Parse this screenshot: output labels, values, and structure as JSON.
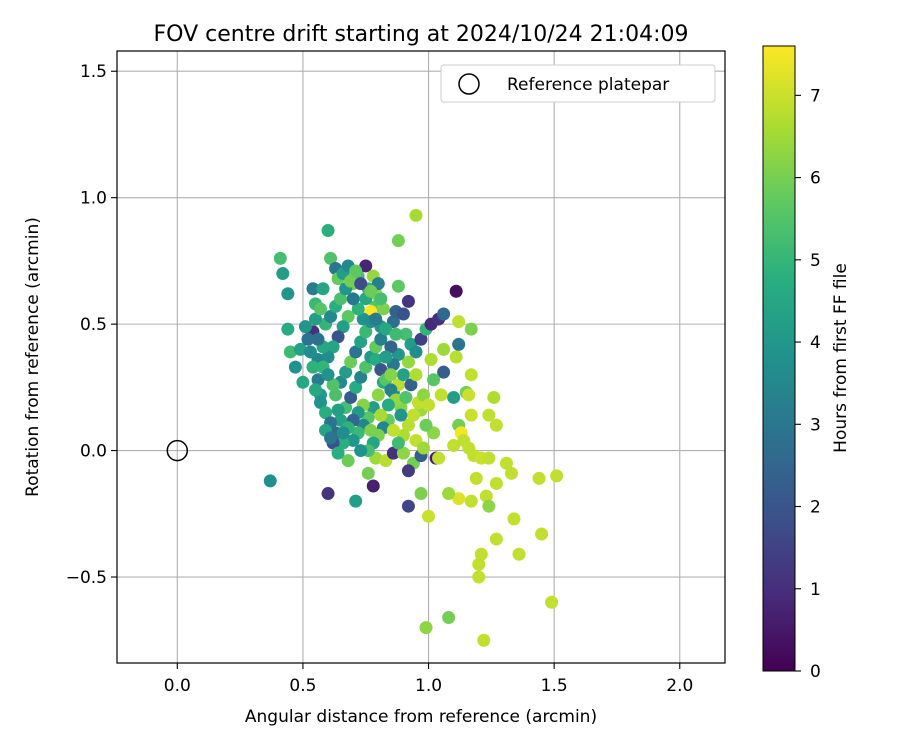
{
  "chart_data": {
    "type": "scatter",
    "title": "FOV centre drift starting at 2024/10/24 21:04:09",
    "xlabel": "Angular distance from reference (arcmin)",
    "ylabel": "Rotation from reference (arcmin)",
    "xlim": [
      -0.24,
      2.18
    ],
    "ylim": [
      -0.84,
      1.58
    ],
    "xticks": [
      0.0,
      0.5,
      1.0,
      1.5,
      2.0
    ],
    "xtick_labels": [
      "0.0",
      "0.5",
      "1.0",
      "1.5",
      "2.0"
    ],
    "yticks": [
      -0.5,
      0.0,
      0.5,
      1.0,
      1.5
    ],
    "ytick_labels": [
      "−0.5",
      "0.0",
      "0.5",
      "1.0",
      "1.5"
    ],
    "grid": true,
    "legend": {
      "position": "top-right",
      "entries": [
        "Reference platepar"
      ]
    },
    "colormap": "viridis",
    "colorbar": {
      "label": "Hours from first FF file",
      "range": [
        0,
        7.6
      ],
      "ticks": [
        0,
        1,
        2,
        3,
        4,
        5,
        6,
        7
      ],
      "tick_labels": [
        "0",
        "1",
        "2",
        "3",
        "4",
        "5",
        "6",
        "7"
      ]
    },
    "reference_point": {
      "name": "Reference platepar",
      "x": 0.0,
      "y": 0.0
    },
    "points": [
      {
        "x": 0.6,
        "y": 0.87,
        "h": 4.8
      },
      {
        "x": 0.41,
        "y": 0.76,
        "h": 5.3
      },
      {
        "x": 0.42,
        "y": 0.7,
        "h": 4.2
      },
      {
        "x": 0.44,
        "y": 0.62,
        "h": 4.0
      },
      {
        "x": 0.44,
        "y": 0.48,
        "h": 4.7
      },
      {
        "x": 0.45,
        "y": 0.39,
        "h": 5.2
      },
      {
        "x": 0.47,
        "y": 0.33,
        "h": 3.9
      },
      {
        "x": 0.49,
        "y": 0.4,
        "h": 4.4
      },
      {
        "x": 0.5,
        "y": 0.27,
        "h": 4.6
      },
      {
        "x": 0.37,
        "y": -0.12,
        "h": 3.8
      },
      {
        "x": 0.54,
        "y": 0.64,
        "h": 3.2
      },
      {
        "x": 0.55,
        "y": 0.58,
        "h": 5.1
      },
      {
        "x": 0.54,
        "y": 0.47,
        "h": 1.1
      },
      {
        "x": 0.56,
        "y": 0.36,
        "h": 3.5
      },
      {
        "x": 0.57,
        "y": 0.22,
        "h": 4.1
      },
      {
        "x": 0.58,
        "y": 0.64,
        "h": 4.5
      },
      {
        "x": 0.61,
        "y": 0.76,
        "h": 5.5
      },
      {
        "x": 0.63,
        "y": 0.72,
        "h": 3.0
      },
      {
        "x": 0.64,
        "y": 0.68,
        "h": 5.8
      },
      {
        "x": 0.66,
        "y": 0.7,
        "h": 4.3
      },
      {
        "x": 0.68,
        "y": 0.73,
        "h": 3.6
      },
      {
        "x": 0.7,
        "y": 0.66,
        "h": 5.9
      },
      {
        "x": 0.72,
        "y": 0.69,
        "h": 5.4
      },
      {
        "x": 0.75,
        "y": 0.73,
        "h": 0.8
      },
      {
        "x": 0.76,
        "y": 0.64,
        "h": 4.9
      },
      {
        "x": 0.78,
        "y": 0.69,
        "h": 6.4
      },
      {
        "x": 0.79,
        "y": 0.62,
        "h": 6.3
      },
      {
        "x": 0.79,
        "y": 0.57,
        "h": 5.6
      },
      {
        "x": 0.77,
        "y": 0.55,
        "h": 7.6
      },
      {
        "x": 0.8,
        "y": 0.66,
        "h": 3.3
      },
      {
        "x": 0.81,
        "y": 0.49,
        "h": 4.0
      },
      {
        "x": 0.82,
        "y": 0.56,
        "h": 6.1
      },
      {
        "x": 0.86,
        "y": 0.51,
        "h": 2.8
      },
      {
        "x": 0.87,
        "y": 0.55,
        "h": 2.4
      },
      {
        "x": 0.88,
        "y": 0.65,
        "h": 5.7
      },
      {
        "x": 0.88,
        "y": 0.83,
        "h": 6.0
      },
      {
        "x": 0.95,
        "y": 0.93,
        "h": 6.6
      },
      {
        "x": 0.92,
        "y": 0.59,
        "h": 1.2
      },
      {
        "x": 0.9,
        "y": 0.54,
        "h": 2.0
      },
      {
        "x": 0.91,
        "y": 0.46,
        "h": 5.3
      },
      {
        "x": 0.93,
        "y": 0.42,
        "h": 4.2
      },
      {
        "x": 0.95,
        "y": 0.39,
        "h": 3.7
      },
      {
        "x": 0.97,
        "y": 0.44,
        "h": 1.5
      },
      {
        "x": 0.99,
        "y": 0.48,
        "h": 5.0
      },
      {
        "x": 1.01,
        "y": 0.5,
        "h": 0.9
      },
      {
        "x": 1.04,
        "y": 0.52,
        "h": 1.1
      },
      {
        "x": 1.06,
        "y": 0.54,
        "h": 2.6
      },
      {
        "x": 1.11,
        "y": 0.63,
        "h": 0.3
      },
      {
        "x": 1.12,
        "y": 0.51,
        "h": 6.9
      },
      {
        "x": 1.17,
        "y": 0.48,
        "h": 6.1
      },
      {
        "x": 1.12,
        "y": 0.42,
        "h": 2.9
      },
      {
        "x": 1.11,
        "y": 0.37,
        "h": 6.8
      },
      {
        "x": 1.06,
        "y": 0.4,
        "h": 6.5
      },
      {
        "x": 1.06,
        "y": 0.31,
        "h": 2.3
      },
      {
        "x": 1.01,
        "y": 0.36,
        "h": 6.7
      },
      {
        "x": 1.02,
        "y": 0.28,
        "h": 5.6
      },
      {
        "x": 1.05,
        "y": 0.22,
        "h": 6.9
      },
      {
        "x": 1.1,
        "y": 0.21,
        "h": 4.3
      },
      {
        "x": 1.15,
        "y": 0.23,
        "h": 6.0
      },
      {
        "x": 1.17,
        "y": 0.3,
        "h": 6.9
      },
      {
        "x": 1.16,
        "y": 0.22,
        "h": 7.0
      },
      {
        "x": 1.17,
        "y": 0.14,
        "h": 7.0
      },
      {
        "x": 1.12,
        "y": 0.1,
        "h": 6.0
      },
      {
        "x": 1.1,
        "y": 0.02,
        "h": 6.9
      },
      {
        "x": 1.13,
        "y": 0.07,
        "h": 7.5
      },
      {
        "x": 1.14,
        "y": 0.04,
        "h": 6.9
      },
      {
        "x": 1.16,
        "y": 0.01,
        "h": 6.9
      },
      {
        "x": 1.18,
        "y": -0.02,
        "h": 6.9
      },
      {
        "x": 1.21,
        "y": -0.03,
        "h": 7.0
      },
      {
        "x": 1.24,
        "y": -0.03,
        "h": 6.9
      },
      {
        "x": 1.24,
        "y": 0.14,
        "h": 6.9
      },
      {
        "x": 1.26,
        "y": 0.21,
        "h": 6.7
      },
      {
        "x": 1.27,
        "y": 0.1,
        "h": 6.9
      },
      {
        "x": 1.31,
        "y": -0.05,
        "h": 6.9
      },
      {
        "x": 1.33,
        "y": -0.09,
        "h": 6.9
      },
      {
        "x": 1.27,
        "y": -0.13,
        "h": 6.9
      },
      {
        "x": 1.19,
        "y": -0.11,
        "h": 6.9
      },
      {
        "x": 1.23,
        "y": -0.18,
        "h": 6.9
      },
      {
        "x": 1.24,
        "y": -0.22,
        "h": 6.3
      },
      {
        "x": 1.17,
        "y": -0.2,
        "h": 6.9
      },
      {
        "x": 1.12,
        "y": -0.19,
        "h": 7.2
      },
      {
        "x": 1.08,
        "y": -0.17,
        "h": 6.5
      },
      {
        "x": 0.97,
        "y": -0.17,
        "h": 6.1
      },
      {
        "x": 1.0,
        "y": -0.26,
        "h": 7.0
      },
      {
        "x": 1.27,
        "y": -0.35,
        "h": 6.9
      },
      {
        "x": 1.34,
        "y": -0.27,
        "h": 6.9
      },
      {
        "x": 1.44,
        "y": -0.11,
        "h": 6.9
      },
      {
        "x": 1.51,
        "y": -0.1,
        "h": 6.9
      },
      {
        "x": 1.45,
        "y": -0.33,
        "h": 6.9
      },
      {
        "x": 1.36,
        "y": -0.41,
        "h": 6.9
      },
      {
        "x": 1.21,
        "y": -0.41,
        "h": 6.9
      },
      {
        "x": 1.2,
        "y": -0.45,
        "h": 6.9
      },
      {
        "x": 1.2,
        "y": -0.5,
        "h": 6.9
      },
      {
        "x": 1.49,
        "y": -0.6,
        "h": 6.9
      },
      {
        "x": 0.99,
        "y": -0.7,
        "h": 6.3
      },
      {
        "x": 1.08,
        "y": -0.66,
        "h": 6.0
      },
      {
        "x": 1.22,
        "y": -0.75,
        "h": 6.9
      },
      {
        "x": 0.6,
        "y": -0.17,
        "h": 1.2
      },
      {
        "x": 0.71,
        "y": -0.2,
        "h": 4.3
      },
      {
        "x": 0.78,
        "y": -0.14,
        "h": 0.7
      },
      {
        "x": 0.92,
        "y": -0.22,
        "h": 1.6
      },
      {
        "x": 0.76,
        "y": -0.09,
        "h": 6.0
      },
      {
        "x": 0.68,
        "y": -0.04,
        "h": 5.9
      },
      {
        "x": 0.79,
        "y": -0.03,
        "h": 6.5
      },
      {
        "x": 0.83,
        "y": -0.04,
        "h": 6.8
      },
      {
        "x": 0.86,
        "y": -0.01,
        "h": 1.1
      },
      {
        "x": 0.9,
        "y": -0.01,
        "h": 6.3
      },
      {
        "x": 0.94,
        "y": -0.05,
        "h": 6.0
      },
      {
        "x": 0.92,
        "y": -0.08,
        "h": 1.3
      },
      {
        "x": 0.97,
        "y": -0.02,
        "h": 2.3
      },
      {
        "x": 1.03,
        "y": -0.03,
        "h": 0.6
      },
      {
        "x": 1.04,
        "y": -0.03,
        "h": 6.9
      },
      {
        "x": 1.02,
        "y": 0.07,
        "h": 6.3
      },
      {
        "x": 0.99,
        "y": 0.1,
        "h": 5.9
      },
      {
        "x": 0.97,
        "y": 0.16,
        "h": 6.5
      },
      {
        "x": 0.96,
        "y": 0.19,
        "h": 6.9
      },
      {
        "x": 0.98,
        "y": 0.22,
        "h": 6.3
      },
      {
        "x": 1.0,
        "y": 0.18,
        "h": 6.9
      },
      {
        "x": 0.94,
        "y": 0.14,
        "h": 6.9
      },
      {
        "x": 0.92,
        "y": 0.1,
        "h": 6.8
      },
      {
        "x": 0.9,
        "y": 0.06,
        "h": 6.7
      },
      {
        "x": 0.95,
        "y": 0.04,
        "h": 6.9
      },
      {
        "x": 0.98,
        "y": 0.01,
        "h": 6.5
      },
      {
        "x": 0.89,
        "y": 0.17,
        "h": 6.2
      },
      {
        "x": 0.86,
        "y": 0.23,
        "h": 3.6
      },
      {
        "x": 0.88,
        "y": 0.26,
        "h": 6.8
      },
      {
        "x": 0.9,
        "y": 0.3,
        "h": 4.4
      },
      {
        "x": 0.92,
        "y": 0.35,
        "h": 6.4
      },
      {
        "x": 0.88,
        "y": 0.38,
        "h": 4.0
      },
      {
        "x": 0.86,
        "y": 0.34,
        "h": 3.1
      },
      {
        "x": 0.84,
        "y": 0.3,
        "h": 5.0
      },
      {
        "x": 0.82,
        "y": 0.27,
        "h": 4.6
      },
      {
        "x": 0.8,
        "y": 0.22,
        "h": 6.3
      },
      {
        "x": 0.78,
        "y": 0.17,
        "h": 4.2
      },
      {
        "x": 0.76,
        "y": 0.13,
        "h": 5.6
      },
      {
        "x": 0.74,
        "y": 0.1,
        "h": 3.5
      },
      {
        "x": 0.72,
        "y": 0.07,
        "h": 5.1
      },
      {
        "x": 0.7,
        "y": 0.04,
        "h": 4.0
      },
      {
        "x": 0.66,
        "y": 0.03,
        "h": 4.8
      },
      {
        "x": 0.62,
        "y": 0.03,
        "h": 1.9
      },
      {
        "x": 0.63,
        "y": 0.07,
        "h": 2.7
      },
      {
        "x": 0.65,
        "y": 0.12,
        "h": 4.4
      },
      {
        "x": 0.67,
        "y": 0.17,
        "h": 5.3
      },
      {
        "x": 0.69,
        "y": 0.21,
        "h": 2.2
      },
      {
        "x": 0.71,
        "y": 0.25,
        "h": 4.7
      },
      {
        "x": 0.73,
        "y": 0.29,
        "h": 3.4
      },
      {
        "x": 0.75,
        "y": 0.33,
        "h": 5.5
      },
      {
        "x": 0.77,
        "y": 0.37,
        "h": 4.1
      },
      {
        "x": 0.79,
        "y": 0.41,
        "h": 5.8
      },
      {
        "x": 0.81,
        "y": 0.44,
        "h": 3.3
      },
      {
        "x": 0.83,
        "y": 0.48,
        "h": 4.6
      },
      {
        "x": 0.85,
        "y": 0.41,
        "h": 2.5
      },
      {
        "x": 0.87,
        "y": 0.46,
        "h": 5.2
      },
      {
        "x": 0.74,
        "y": 0.52,
        "h": 3.9
      },
      {
        "x": 0.72,
        "y": 0.56,
        "h": 4.9
      },
      {
        "x": 0.7,
        "y": 0.6,
        "h": 3.1
      },
      {
        "x": 0.68,
        "y": 0.53,
        "h": 5.7
      },
      {
        "x": 0.66,
        "y": 0.49,
        "h": 4.3
      },
      {
        "x": 0.64,
        "y": 0.45,
        "h": 2.0
      },
      {
        "x": 0.62,
        "y": 0.41,
        "h": 4.5
      },
      {
        "x": 0.6,
        "y": 0.37,
        "h": 3.7
      },
      {
        "x": 0.58,
        "y": 0.33,
        "h": 5.0
      },
      {
        "x": 0.56,
        "y": 0.28,
        "h": 3.2
      },
      {
        "x": 0.55,
        "y": 0.24,
        "h": 4.6
      },
      {
        "x": 0.57,
        "y": 0.19,
        "h": 3.9
      },
      {
        "x": 0.59,
        "y": 0.15,
        "h": 4.8
      },
      {
        "x": 0.61,
        "y": 0.11,
        "h": 2.9
      },
      {
        "x": 0.63,
        "y": 0.22,
        "h": 5.4
      },
      {
        "x": 0.65,
        "y": 0.27,
        "h": 3.6
      },
      {
        "x": 0.67,
        "y": 0.31,
        "h": 4.2
      },
      {
        "x": 0.69,
        "y": 0.35,
        "h": 5.9
      },
      {
        "x": 0.71,
        "y": 0.39,
        "h": 3.0
      },
      {
        "x": 0.73,
        "y": 0.43,
        "h": 4.4
      },
      {
        "x": 0.75,
        "y": 0.47,
        "h": 5.1
      },
      {
        "x": 0.77,
        "y": 0.51,
        "h": 3.8
      },
      {
        "x": 0.79,
        "y": 0.36,
        "h": 4.7
      },
      {
        "x": 0.81,
        "y": 0.32,
        "h": 2.1
      },
      {
        "x": 0.83,
        "y": 0.28,
        "h": 5.6
      },
      {
        "x": 0.85,
        "y": 0.24,
        "h": 3.4
      },
      {
        "x": 0.87,
        "y": 0.2,
        "h": 6.4
      },
      {
        "x": 0.89,
        "y": 0.14,
        "h": 4.0
      },
      {
        "x": 0.84,
        "y": 0.12,
        "h": 5.8
      },
      {
        "x": 0.82,
        "y": 0.09,
        "h": 3.5
      },
      {
        "x": 0.8,
        "y": 0.06,
        "h": 6.1
      },
      {
        "x": 0.78,
        "y": 0.03,
        "h": 4.5
      },
      {
        "x": 0.76,
        "y": 0.0,
        "h": 5.3
      },
      {
        "x": 0.74,
        "y": 0.18,
        "h": 6.2
      },
      {
        "x": 0.72,
        "y": 0.15,
        "h": 4.1
      },
      {
        "x": 0.7,
        "y": 0.12,
        "h": 2.6
      },
      {
        "x": 0.68,
        "y": 0.09,
        "h": 4.9
      },
      {
        "x": 0.66,
        "y": 0.07,
        "h": 3.7
      },
      {
        "x": 0.64,
        "y": 0.16,
        "h": 4.3
      },
      {
        "x": 0.62,
        "y": 0.26,
        "h": 5.5
      },
      {
        "x": 0.6,
        "y": 0.3,
        "h": 3.9
      },
      {
        "x": 0.58,
        "y": 0.41,
        "h": 4.6
      },
      {
        "x": 0.56,
        "y": 0.44,
        "h": 2.8
      },
      {
        "x": 0.59,
        "y": 0.5,
        "h": 5.0
      },
      {
        "x": 0.61,
        "y": 0.53,
        "h": 3.6
      },
      {
        "x": 0.63,
        "y": 0.57,
        "h": 4.8
      },
      {
        "x": 0.65,
        "y": 0.6,
        "h": 5.4
      },
      {
        "x": 0.67,
        "y": 0.64,
        "h": 4.0
      },
      {
        "x": 0.69,
        "y": 0.67,
        "h": 6.0
      },
      {
        "x": 0.71,
        "y": 0.71,
        "h": 5.7
      },
      {
        "x": 0.73,
        "y": 0.66,
        "h": 1.8
      },
      {
        "x": 0.75,
        "y": 0.6,
        "h": 4.6
      },
      {
        "x": 0.77,
        "y": 0.63,
        "h": 5.9
      },
      {
        "x": 0.79,
        "y": 0.52,
        "h": 3.2
      },
      {
        "x": 0.81,
        "y": 0.6,
        "h": 5.3
      },
      {
        "x": 0.83,
        "y": 0.37,
        "h": 4.2
      },
      {
        "x": 0.85,
        "y": 0.3,
        "h": 6.2
      },
      {
        "x": 0.54,
        "y": 0.33,
        "h": 4.9
      },
      {
        "x": 0.53,
        "y": 0.39,
        "h": 3.7
      },
      {
        "x": 0.55,
        "y": 0.52,
        "h": 4.3
      },
      {
        "x": 0.57,
        "y": 0.56,
        "h": 5.6
      },
      {
        "x": 0.52,
        "y": 0.44,
        "h": 2.9
      },
      {
        "x": 0.51,
        "y": 0.49,
        "h": 4.0
      },
      {
        "x": 0.59,
        "y": 0.08,
        "h": 4.5
      },
      {
        "x": 0.61,
        "y": 0.05,
        "h": 3.0
      },
      {
        "x": 0.64,
        "y": -0.01,
        "h": 4.8
      },
      {
        "x": 0.73,
        "y": 0.0,
        "h": 3.9
      },
      {
        "x": 0.77,
        "y": 0.08,
        "h": 6.1
      },
      {
        "x": 0.81,
        "y": 0.14,
        "h": 6.6
      },
      {
        "x": 0.84,
        "y": 0.18,
        "h": 4.7
      },
      {
        "x": 0.86,
        "y": 0.08,
        "h": 6.9
      },
      {
        "x": 0.88,
        "y": 0.03,
        "h": 5.2
      },
      {
        "x": 0.91,
        "y": 0.21,
        "h": 5.5
      },
      {
        "x": 0.93,
        "y": 0.26,
        "h": 2.4
      },
      {
        "x": 0.95,
        "y": 0.3,
        "h": 6.7
      }
    ]
  }
}
